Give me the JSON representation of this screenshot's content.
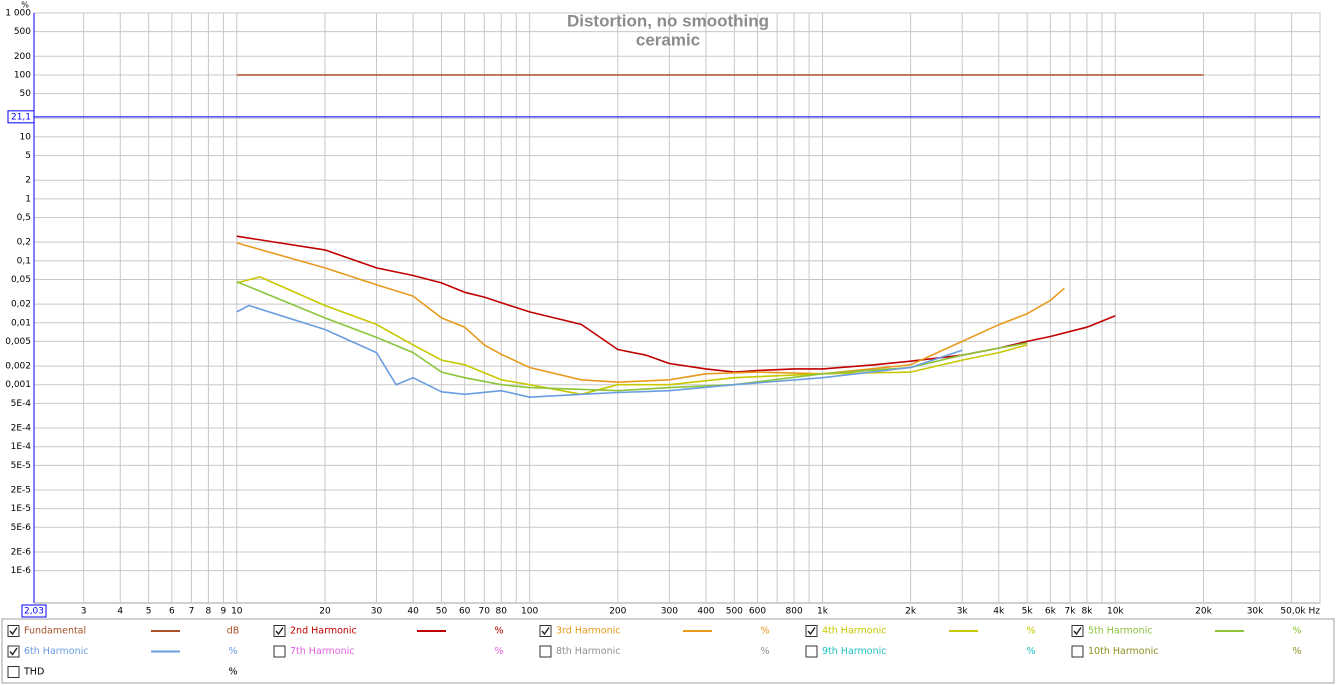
{
  "chart_data": {
    "type": "line",
    "title": "Distortion, no smoothing",
    "subtitle": "ceramic",
    "y_unit": "%",
    "log_x": true,
    "log_y": true,
    "grid": true,
    "xlim": [
      2.03,
      50000
    ],
    "ylim": [
      3e-07,
      1000
    ],
    "xticks": [
      3,
      4,
      5,
      6,
      7,
      8,
      9,
      10,
      20,
      30,
      40,
      50,
      60,
      70,
      80,
      100,
      200,
      300,
      400,
      500,
      600,
      800,
      {
        "value": 1000,
        "label": "1k"
      },
      {
        "value": 2000,
        "label": "2k"
      },
      {
        "value": 3000,
        "label": "3k"
      },
      {
        "value": 4000,
        "label": "4k"
      },
      {
        "value": 5000,
        "label": "5k"
      },
      {
        "value": 6000,
        "label": "6k"
      },
      {
        "value": 7000,
        "label": "7k"
      },
      {
        "value": 8000,
        "label": "8k"
      },
      {
        "value": 10000,
        "label": "10k"
      },
      {
        "value": 20000,
        "label": "20k"
      },
      {
        "value": 30000,
        "label": "30k"
      },
      {
        "value": 50000,
        "label": "50,0k Hz"
      }
    ],
    "xminor": [
      90,
      700,
      900,
      9000,
      40000
    ],
    "yticks": [
      {
        "value": 1000,
        "label": "1 000"
      },
      500,
      200,
      100,
      50,
      10,
      5,
      2,
      1,
      {
        "value": 0.5,
        "label": "0,5"
      },
      {
        "value": 0.2,
        "label": "0,2"
      },
      {
        "value": 0.1,
        "label": "0,1"
      },
      {
        "value": 0.05,
        "label": "0,05"
      },
      {
        "value": 0.02,
        "label": "0,02"
      },
      {
        "value": 0.01,
        "label": "0,01"
      },
      {
        "value": 0.005,
        "label": "0,005"
      },
      {
        "value": 0.002,
        "label": "0,002"
      },
      {
        "value": 0.001,
        "label": "0,001"
      },
      {
        "value": 0.0005,
        "label": "5E-4"
      },
      {
        "value": 0.0002,
        "label": "2E-4"
      },
      {
        "value": 0.0001,
        "label": "1E-4"
      },
      {
        "value": 5e-05,
        "label": "5E-5"
      },
      {
        "value": 2e-05,
        "label": "2E-5"
      },
      {
        "value": 1e-05,
        "label": "1E-5"
      },
      {
        "value": 5e-06,
        "label": "5E-6"
      },
      {
        "value": 2e-06,
        "label": "2E-6"
      },
      {
        "value": 1e-06,
        "label": "1E-6"
      }
    ],
    "yminor": [
      20
    ],
    "cursor": {
      "x": {
        "value": 2.03,
        "label": "2,03"
      },
      "y": {
        "value": 21.1,
        "label": "21,1"
      },
      "color": "#0000ff"
    },
    "series": [
      {
        "name": "Fundamental",
        "color": "#a8522a",
        "unit": "dB",
        "checked": true,
        "x": [
          10,
          20000
        ],
        "values": [
          100,
          100
        ]
      },
      {
        "name": "2nd Harmonic",
        "color": "#c00000",
        "unit": "%",
        "checked": true,
        "x": [
          10,
          20,
          30,
          40,
          50,
          60,
          70,
          80,
          100,
          150,
          200,
          250,
          300,
          400,
          500,
          600,
          800,
          1000,
          1500,
          2000,
          3000,
          4000,
          5000,
          6000,
          8000,
          10000
        ],
        "values": [
          0.25,
          0.15,
          0.077,
          0.058,
          0.044,
          0.031,
          0.026,
          0.021,
          0.015,
          0.0094,
          0.0037,
          0.003,
          0.0022,
          0.0018,
          0.0016,
          0.0017,
          0.0018,
          0.0018,
          0.0021,
          0.0024,
          0.003,
          0.0039,
          0.005,
          0.006,
          0.0085,
          0.013
        ]
      },
      {
        "name": "3rd Harmonic",
        "color": "#e89a1e",
        "unit": "%",
        "checked": true,
        "x": [
          10,
          20,
          30,
          40,
          50,
          60,
          70,
          80,
          100,
          150,
          200,
          300,
          400,
          600,
          1000,
          2000,
          3000,
          4000,
          5000,
          6000,
          6700
        ],
        "values": [
          0.195,
          0.077,
          0.041,
          0.027,
          0.012,
          0.0085,
          0.0044,
          0.0031,
          0.0019,
          0.0012,
          0.0011,
          0.0012,
          0.0015,
          0.0016,
          0.0015,
          0.0021,
          0.005,
          0.0093,
          0.014,
          0.023,
          0.036
        ]
      },
      {
        "name": "4th Harmonic",
        "color": "#c8c800",
        "unit": "%",
        "checked": true,
        "x": [
          10,
          12,
          20,
          30,
          40,
          50,
          60,
          80,
          100,
          150,
          200,
          300,
          500,
          1000,
          2000,
          3000,
          4000,
          5000
        ],
        "values": [
          0.044,
          0.055,
          0.019,
          0.0094,
          0.0044,
          0.0025,
          0.0021,
          0.0012,
          0.001,
          0.0007,
          0.001,
          0.001,
          0.0013,
          0.0015,
          0.0016,
          0.0025,
          0.0033,
          0.0044
        ]
      },
      {
        "name": "5th Harmonic",
        "color": "#8cc43a",
        "unit": "%",
        "checked": true,
        "x": [
          10,
          20,
          30,
          40,
          50,
          60,
          80,
          100,
          200,
          300,
          500,
          1000,
          2000,
          3000,
          4000,
          5000
        ],
        "values": [
          0.046,
          0.012,
          0.0058,
          0.0033,
          0.0016,
          0.0013,
          0.001,
          0.0009,
          0.0008,
          0.0009,
          0.001,
          0.0015,
          0.0019,
          0.003,
          0.0039,
          0.0047
        ]
      },
      {
        "name": "6th Harmonic",
        "color": "#6a9ee0",
        "unit": "%",
        "checked": true,
        "x": [
          10,
          11,
          20,
          30,
          35,
          40,
          50,
          60,
          80,
          100,
          150,
          200,
          300,
          500,
          1000,
          2000,
          3000
        ],
        "values": [
          0.015,
          0.019,
          0.0078,
          0.0033,
          0.001,
          0.0013,
          0.00077,
          0.0007,
          0.0008,
          0.00063,
          0.0007,
          0.00075,
          0.0008,
          0.001,
          0.0013,
          0.0019,
          0.0036
        ]
      },
      {
        "name": "7th Harmonic",
        "color": "#e060e0",
        "unit": "%",
        "checked": false
      },
      {
        "name": "8th Harmonic",
        "color": "#909090",
        "unit": "%",
        "checked": false
      },
      {
        "name": "9th Harmonic",
        "color": "#20c0c0",
        "unit": "%",
        "checked": false
      },
      {
        "name": "10th Harmonic",
        "color": "#909020",
        "unit": "%",
        "checked": false
      },
      {
        "name": "THD",
        "color": "#000000",
        "unit": "%",
        "checked": false
      }
    ]
  }
}
